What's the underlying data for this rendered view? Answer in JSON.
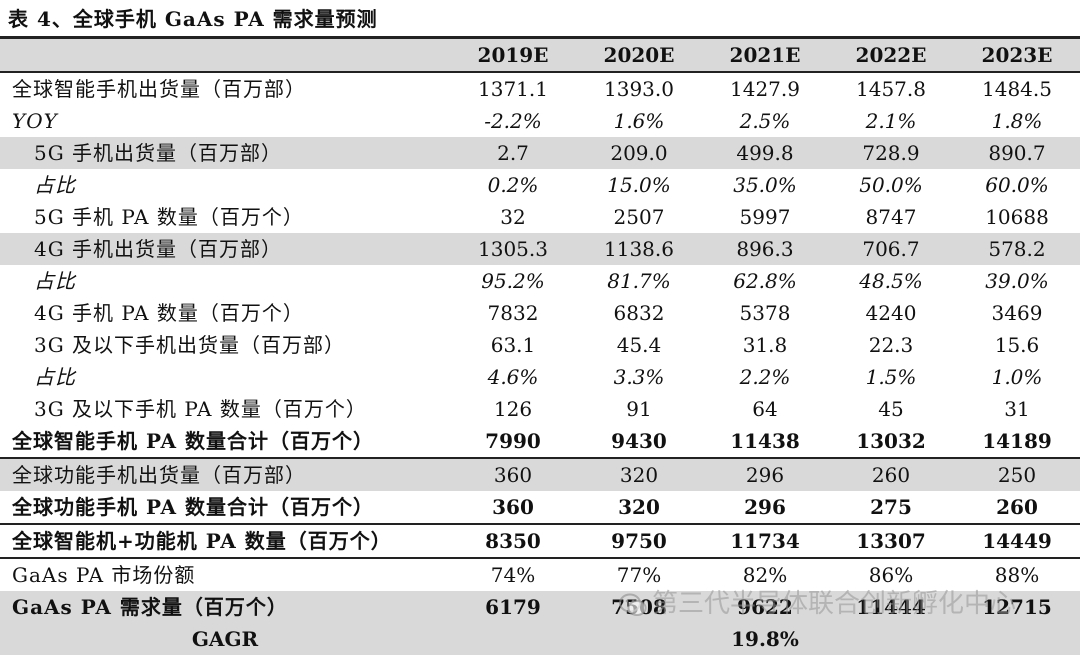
{
  "title": "表 4、全球手机 GaAs PA 需求量预测",
  "columns": [
    "2019E",
    "2020E",
    "2021E",
    "2022E",
    "2023E"
  ],
  "rows": [
    {
      "label": "全球智能手机出货量（百万部）",
      "values": [
        "1371.1",
        "1393.0",
        "1427.9",
        "1457.8",
        "1484.5"
      ]
    },
    {
      "label": "YOY",
      "values": [
        "-2.2%",
        "1.6%",
        "2.5%",
        "2.1%",
        "1.8%"
      ]
    },
    {
      "label": "5G 手机出货量（百万部）",
      "values": [
        "2.7",
        "209.0",
        "499.8",
        "728.9",
        "890.7"
      ]
    },
    {
      "label": "占比",
      "values": [
        "0.2%",
        "15.0%",
        "35.0%",
        "50.0%",
        "60.0%"
      ]
    },
    {
      "label": "5G 手机 PA 数量（百万个）",
      "values": [
        "32",
        "2507",
        "5997",
        "8747",
        "10688"
      ]
    },
    {
      "label": "4G 手机出货量（百万部）",
      "values": [
        "1305.3",
        "1138.6",
        "896.3",
        "706.7",
        "578.2"
      ]
    },
    {
      "label": "占比",
      "values": [
        "95.2%",
        "81.7%",
        "62.8%",
        "48.5%",
        "39.0%"
      ]
    },
    {
      "label": "4G 手机 PA 数量（百万个）",
      "values": [
        "7832",
        "6832",
        "5378",
        "4240",
        "3469"
      ]
    },
    {
      "label": "3G 及以下手机出货量（百万部）",
      "values": [
        "63.1",
        "45.4",
        "31.8",
        "22.3",
        "15.6"
      ]
    },
    {
      "label": "占比",
      "values": [
        "4.6%",
        "3.3%",
        "2.2%",
        "1.5%",
        "1.0%"
      ]
    },
    {
      "label": "3G 及以下手机 PA 数量（百万个）",
      "values": [
        "126",
        "91",
        "64",
        "45",
        "31"
      ]
    },
    {
      "label": "全球智能手机 PA 数量合计（百万个）",
      "values": [
        "7990",
        "9430",
        "11438",
        "13032",
        "14189"
      ]
    },
    {
      "label": "全球功能手机出货量（百万部）",
      "values": [
        "360",
        "320",
        "296",
        "260",
        "250"
      ]
    },
    {
      "label": "全球功能手机 PA 数量合计（百万个）",
      "values": [
        "360",
        "320",
        "296",
        "275",
        "260"
      ]
    },
    {
      "label": "全球智能机+功能机 PA 数量（百万个）",
      "values": [
        "8350",
        "9750",
        "11734",
        "13307",
        "14449"
      ]
    },
    {
      "label": "GaAs PA 市场份额",
      "values": [
        "74%",
        "77%",
        "82%",
        "86%",
        "88%"
      ]
    },
    {
      "label": "GaAs PA 需求量（百万个）",
      "values": [
        "6179",
        "7508",
        "9622",
        "11444",
        "12715"
      ]
    }
  ],
  "cagr": {
    "label": "GAGR",
    "value": "19.8%"
  },
  "watermark": "第三代半导体联合创新孵化中心",
  "icons": {
    "watermark_icon": "wechat-icon"
  }
}
